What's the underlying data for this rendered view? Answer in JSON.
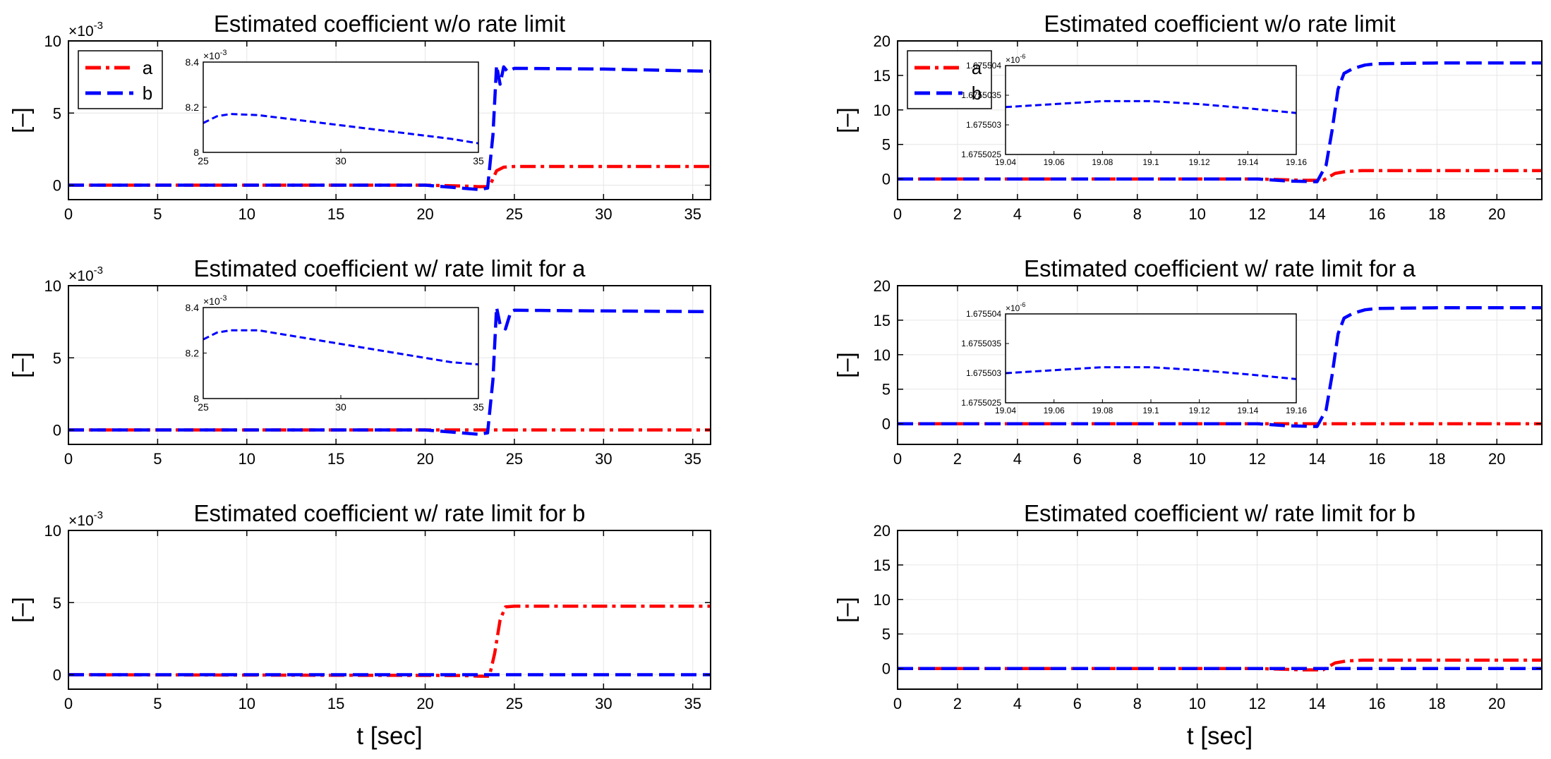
{
  "figure": {
    "ylabel": "[–]",
    "xlabel": "t [sec]",
    "colors": {
      "a": "#ff0000",
      "b": "#0000ff",
      "grid": "#e6e6e6",
      "axis": "#000000"
    }
  },
  "chart_data": [
    {
      "id": "left-1",
      "type": "line",
      "title": "Estimated coefficient w/o rate limit",
      "xlabel": "",
      "ylabel": "[–]",
      "xlim": [
        0,
        36
      ],
      "ylim": [
        -1,
        10
      ],
      "xticks": [
        0,
        5,
        10,
        15,
        20,
        25,
        30,
        35
      ],
      "yticks": [
        0,
        5,
        10
      ],
      "yexponent": "×10",
      "yexponent_power": "-3",
      "legend": {
        "position": "top-left",
        "entries": [
          "a",
          "b"
        ]
      },
      "series": [
        {
          "name": "a",
          "color": "#ff0000",
          "style": "dashdot",
          "x": [
            0,
            20,
            22,
            23,
            23.6,
            24,
            24.4,
            25,
            36
          ],
          "y": [
            0,
            0,
            -0.05,
            -0.1,
            -0.1,
            1.0,
            1.25,
            1.3,
            1.3
          ]
        },
        {
          "name": "b",
          "color": "#0000ff",
          "style": "dashed",
          "x": [
            0,
            20,
            22,
            23,
            23.5,
            23.8,
            24,
            24.2,
            24.4,
            24.6,
            25,
            30,
            36
          ],
          "y": [
            0,
            0,
            -0.2,
            -0.3,
            -0.2,
            3.5,
            8.3,
            7.0,
            8.2,
            7.9,
            8.1,
            8.05,
            7.9
          ]
        }
      ],
      "inset": {
        "exponent_text": "×10",
        "exponent_power": "-3",
        "xlim": [
          25,
          35
        ],
        "ylim": [
          8,
          8.4
        ],
        "xticks": [
          25,
          30,
          35
        ],
        "yticks": [
          8,
          8.2,
          8.4
        ],
        "series": {
          "name": "b",
          "color": "#0000ff",
          "x": [
            25,
            25.5,
            26,
            27,
            28,
            30,
            32,
            34,
            35
          ],
          "y": [
            8.13,
            8.16,
            8.17,
            8.165,
            8.15,
            8.12,
            8.09,
            8.06,
            8.04
          ]
        }
      }
    },
    {
      "id": "left-2",
      "type": "line",
      "title": "Estimated coefficient w/ rate limit for a",
      "xlabel": "",
      "ylabel": "[–]",
      "xlim": [
        0,
        36
      ],
      "ylim": [
        -1,
        10
      ],
      "xticks": [
        0,
        5,
        10,
        15,
        20,
        25,
        30,
        35
      ],
      "yticks": [
        0,
        5,
        10
      ],
      "yexponent": "×10",
      "yexponent_power": "-3",
      "series": [
        {
          "name": "a",
          "color": "#ff0000",
          "style": "dashdot",
          "x": [
            0,
            36
          ],
          "y": [
            0,
            0
          ]
        },
        {
          "name": "b",
          "color": "#0000ff",
          "style": "dashed",
          "x": [
            0,
            20,
            22,
            23,
            23.5,
            23.8,
            24,
            24.2,
            24.5,
            24.8,
            25,
            30,
            36
          ],
          "y": [
            0,
            0,
            -0.2,
            -0.3,
            -0.2,
            3.5,
            8.5,
            7.3,
            7.0,
            8.2,
            8.3,
            8.25,
            8.2
          ]
        }
      ],
      "inset": {
        "exponent_text": "×10",
        "exponent_power": "-3",
        "xlim": [
          25,
          35
        ],
        "ylim": [
          8,
          8.4
        ],
        "xticks": [
          25,
          30,
          35
        ],
        "yticks": [
          8,
          8.2,
          8.4
        ],
        "series": {
          "name": "b",
          "color": "#0000ff",
          "x": [
            25,
            25.5,
            26,
            27,
            28,
            30,
            32,
            34,
            35
          ],
          "y": [
            8.26,
            8.29,
            8.3,
            8.3,
            8.28,
            8.24,
            8.2,
            8.16,
            8.15
          ]
        }
      }
    },
    {
      "id": "left-3",
      "type": "line",
      "title": "Estimated coefficient w/ rate limit for b",
      "xlabel": "t [sec]",
      "ylabel": "[–]",
      "xlim": [
        0,
        36
      ],
      "ylim": [
        -1,
        10
      ],
      "xticks": [
        0,
        5,
        10,
        15,
        20,
        25,
        30,
        35
      ],
      "yticks": [
        0,
        5,
        10
      ],
      "yexponent": "×10",
      "yexponent_power": "-3",
      "series": [
        {
          "name": "a",
          "color": "#ff0000",
          "style": "dashdot",
          "x": [
            0,
            22,
            23,
            23.6,
            23.9,
            24.2,
            24.5,
            25,
            36
          ],
          "y": [
            0,
            -0.05,
            -0.1,
            -0.1,
            1.5,
            3.8,
            4.7,
            4.75,
            4.75
          ]
        },
        {
          "name": "b",
          "color": "#0000ff",
          "style": "dashed",
          "x": [
            0,
            36
          ],
          "y": [
            0,
            0
          ]
        }
      ]
    },
    {
      "id": "right-1",
      "type": "line",
      "title": "Estimated coefficient w/o rate limit",
      "xlabel": "",
      "ylabel": "[–]",
      "xlim": [
        0,
        21.5
      ],
      "ylim": [
        -3,
        20
      ],
      "xticks": [
        0,
        2,
        4,
        6,
        8,
        10,
        12,
        14,
        16,
        18,
        20
      ],
      "yticks": [
        0,
        5,
        10,
        15,
        20
      ],
      "legend": {
        "position": "top-left",
        "entries": [
          "a",
          "b"
        ]
      },
      "series": [
        {
          "name": "a",
          "color": "#ff0000",
          "style": "dashdot",
          "x": [
            0,
            12,
            13.5,
            14.2,
            14.6,
            15,
            15.5,
            21.5
          ],
          "y": [
            0,
            0,
            -0.2,
            -0.2,
            0.8,
            1.1,
            1.2,
            1.2
          ]
        },
        {
          "name": "b",
          "color": "#0000ff",
          "style": "dashed",
          "x": [
            0,
            12,
            13,
            14,
            14.3,
            14.5,
            14.7,
            14.9,
            15.2,
            15.6,
            16,
            18,
            21.5
          ],
          "y": [
            0,
            0,
            -0.3,
            -0.4,
            2,
            7,
            13,
            15.3,
            16,
            16.5,
            16.7,
            16.8,
            16.8
          ]
        }
      ],
      "inset": {
        "exponent_text": "×10",
        "exponent_power": "-6",
        "xlim": [
          19.04,
          19.16
        ],
        "ylim": [
          1.6755025,
          1.675504
        ],
        "xticks": [
          19.04,
          19.06,
          19.08,
          19.1,
          19.12,
          19.14,
          19.16
        ],
        "xtick_labels": [
          "19.04",
          "19.06",
          "19.08",
          "19.1",
          "19.12",
          "19.14",
          "19.16"
        ],
        "yticks": [
          1.6755025,
          1.675503,
          1.6755035,
          1.675504
        ],
        "ytick_labels": [
          "1.6755025",
          "1.675503",
          "1.6755035",
          "1.675504"
        ],
        "series": {
          "name": "b",
          "color": "#0000ff",
          "x": [
            19.04,
            19.06,
            19.08,
            19.1,
            19.12,
            19.14,
            19.16
          ],
          "y": [
            1.6755033,
            1.67550335,
            1.6755034,
            1.6755034,
            1.67550335,
            1.67550328,
            1.6755032
          ]
        }
      }
    },
    {
      "id": "right-2",
      "type": "line",
      "title": "Estimated coefficient w/ rate limit for a",
      "xlabel": "",
      "ylabel": "[–]",
      "xlim": [
        0,
        21.5
      ],
      "ylim": [
        -3,
        20
      ],
      "xticks": [
        0,
        2,
        4,
        6,
        8,
        10,
        12,
        14,
        16,
        18,
        20
      ],
      "yticks": [
        0,
        5,
        10,
        15,
        20
      ],
      "series": [
        {
          "name": "a",
          "color": "#ff0000",
          "style": "dashdot",
          "x": [
            0,
            21.5
          ],
          "y": [
            0,
            0
          ]
        },
        {
          "name": "b",
          "color": "#0000ff",
          "style": "dashed",
          "x": [
            0,
            12,
            13,
            14,
            14.3,
            14.5,
            14.7,
            14.9,
            15.2,
            15.6,
            16,
            18,
            21.5
          ],
          "y": [
            0,
            0,
            -0.3,
            -0.4,
            2,
            7,
            13,
            15.3,
            16,
            16.5,
            16.7,
            16.8,
            16.8
          ]
        }
      ],
      "inset": {
        "exponent_text": "×10",
        "exponent_power": "-6",
        "xlim": [
          19.04,
          19.16
        ],
        "ylim": [
          1.6755025,
          1.675504
        ],
        "xticks": [
          19.04,
          19.06,
          19.08,
          19.1,
          19.12,
          19.14,
          19.16
        ],
        "xtick_labels": [
          "19.04",
          "19.06",
          "19.08",
          "19.1",
          "19.12",
          "19.14",
          "19.16"
        ],
        "yticks": [
          1.6755025,
          1.675503,
          1.6755035,
          1.675504
        ],
        "ytick_labels": [
          "1.6755025",
          "1.675503",
          "1.6755035",
          "1.675504"
        ],
        "series": {
          "name": "b",
          "color": "#0000ff",
          "x": [
            19.04,
            19.06,
            19.08,
            19.1,
            19.12,
            19.14,
            19.16
          ],
          "y": [
            1.675503,
            1.67550305,
            1.6755031,
            1.6755031,
            1.67550305,
            1.67550298,
            1.6755029
          ]
        }
      }
    },
    {
      "id": "right-3",
      "type": "line",
      "title": "Estimated coefficient w/ rate limit for b",
      "xlabel": "t [sec]",
      "ylabel": "[–]",
      "xlim": [
        0,
        21.5
      ],
      "ylim": [
        -3,
        20
      ],
      "xticks": [
        0,
        2,
        4,
        6,
        8,
        10,
        12,
        14,
        16,
        18,
        20
      ],
      "yticks": [
        0,
        5,
        10,
        15,
        20
      ],
      "series": [
        {
          "name": "a",
          "color": "#ff0000",
          "style": "dashdot",
          "x": [
            0,
            12,
            13.5,
            14.2,
            14.6,
            15,
            15.5,
            21.5
          ],
          "y": [
            0,
            0,
            -0.2,
            -0.2,
            0.8,
            1.1,
            1.2,
            1.2
          ]
        },
        {
          "name": "b",
          "color": "#0000ff",
          "style": "dashed",
          "x": [
            0,
            21.5
          ],
          "y": [
            0,
            0
          ]
        }
      ]
    }
  ]
}
